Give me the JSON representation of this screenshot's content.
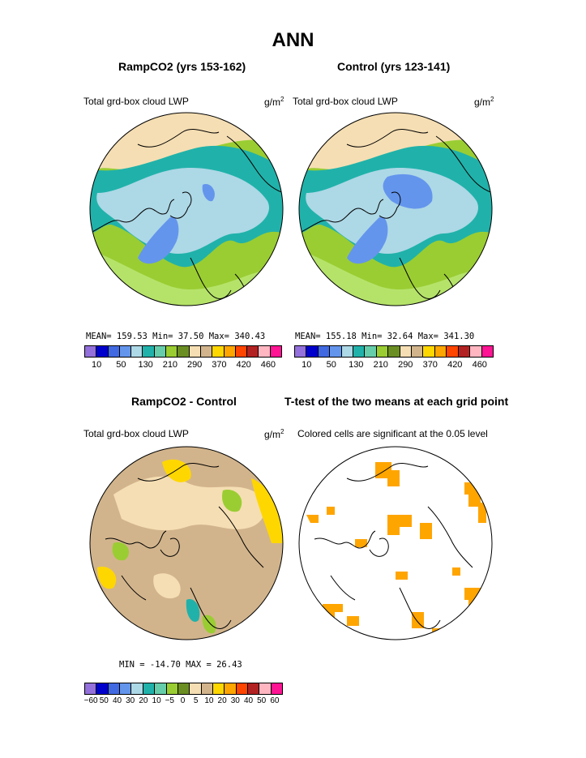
{
  "title": "ANN",
  "panels": {
    "top_left": {
      "title": "RampCO2 (yrs 153-162)",
      "variable": "Total grd-box cloud LWP",
      "units_base": "g/m",
      "units_exp": "2",
      "stats": "MEAN= 159.53  Min=  37.50  Max= 340.43"
    },
    "top_right": {
      "title": "Control (yrs 123-141)",
      "variable": "Total grd-box cloud LWP",
      "units_base": "g/m",
      "units_exp": "2",
      "stats": "MEAN= 155.18  Min=  32.64  Max= 341.30"
    },
    "bottom_left": {
      "title": "RampCO2 - Control",
      "variable": "Total grd-box cloud LWP",
      "units_base": "g/m",
      "units_exp": "2",
      "stats": "MIN = -14.70 MAX =   26.43"
    },
    "bottom_right": {
      "title": "T-test of the two means at each grid point",
      "variable": "Colored cells are significant at the 0.05 level"
    }
  },
  "colorbars": {
    "abs": {
      "colors": [
        "#9370db",
        "#0000cd",
        "#4169e1",
        "#6495ed",
        "#add8e6",
        "#20b2aa",
        "#66cdaa",
        "#9acd32",
        "#6b8e23",
        "#f5deb3",
        "#d2b48c",
        "#ffd700",
        "#ffa500",
        "#ff4500",
        "#b22222",
        "#ffb6c1",
        "#ff1493"
      ],
      "labels": [
        "10",
        "50",
        "130",
        "210",
        "290",
        "370",
        "420",
        "460"
      ]
    },
    "diff": {
      "colors": [
        "#9370db",
        "#0000cd",
        "#4169e1",
        "#6495ed",
        "#add8e6",
        "#20b2aa",
        "#66cdaa",
        "#9acd32",
        "#6b8e23",
        "#f5deb3",
        "#d2b48c",
        "#ffd700",
        "#ffa500",
        "#ff4500",
        "#b22222",
        "#ffb6c1",
        "#ff1493"
      ],
      "labels": [
        "−60",
        "50",
        "40",
        "30",
        "20",
        "10",
        "−5",
        "0",
        "5",
        "10",
        "20",
        "30",
        "40",
        "50",
        "60"
      ]
    }
  },
  "map_colors": {
    "cream": "#f5deb3",
    "tan": "#d2b48c",
    "green": "#9acd32",
    "light_green": "#b5e36a",
    "teal": "#20b2aa",
    "light_blue": "#add8e6",
    "blue": "#6495ed",
    "yellow": "#ffd700",
    "orange": "#ffa500",
    "coast": "#000000"
  }
}
